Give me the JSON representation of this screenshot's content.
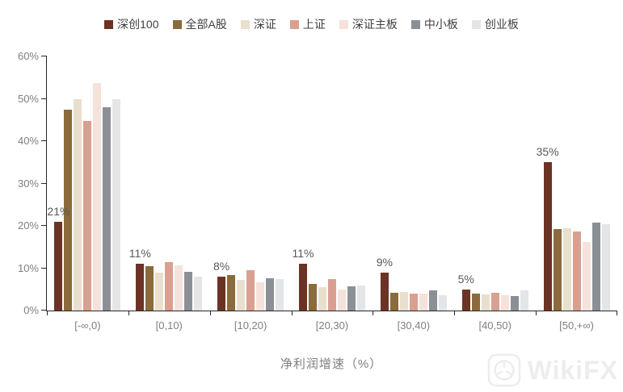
{
  "chart_data": {
    "type": "bar",
    "title": "",
    "xlabel": "净利润增速（%）",
    "ylabel": "",
    "ylim": [
      0,
      60
    ],
    "ytick_labels": [
      "0%",
      "10%",
      "20%",
      "30%",
      "40%",
      "50%",
      "60%"
    ],
    "grid": false,
    "legend_position": "top",
    "categories": [
      "[-∞,0)",
      "[0,10)",
      "[10,20)",
      "[20,30)",
      "[30,40)",
      "[40,50)",
      "[50,+∞)"
    ],
    "series": [
      {
        "name": "深创100",
        "color": "#6B3324",
        "values": [
          21,
          11,
          8,
          11,
          9,
          5,
          35
        ]
      },
      {
        "name": "全部A股",
        "color": "#8B6A3B",
        "values": [
          47.5,
          10.4,
          8.3,
          6.3,
          4.2,
          4.0,
          19.2
        ]
      },
      {
        "name": "深证",
        "color": "#E9DFCD",
        "values": [
          50,
          9.0,
          7.3,
          5.5,
          4.3,
          3.9,
          19.5
        ]
      },
      {
        "name": "上证",
        "color": "#D9A091",
        "values": [
          44.8,
          11.4,
          9.5,
          7.5,
          4.0,
          4.1,
          18.6
        ]
      },
      {
        "name": "深证主板",
        "color": "#F4E2DB",
        "values": [
          53.8,
          10.6,
          6.6,
          5.0,
          4.0,
          3.7,
          16.2
        ]
      },
      {
        "name": "中小板",
        "color": "#8A9095",
        "values": [
          48,
          9.2,
          7.7,
          5.8,
          4.8,
          3.4,
          20.7
        ]
      },
      {
        "name": "创业板",
        "color": "#E3E5E7",
        "values": [
          50,
          8.0,
          7.4,
          6.0,
          3.7,
          4.7,
          20.3
        ]
      }
    ],
    "data_labels": [
      "21%",
      "11%",
      "8%",
      "11%",
      "9%",
      "5%",
      "35%"
    ],
    "data_labels_series": "深创100"
  },
  "watermark": {
    "text": "WikiFX"
  }
}
